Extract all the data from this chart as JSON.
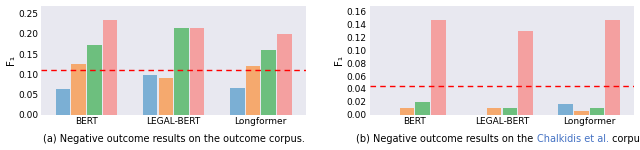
{
  "left_plot": {
    "title": "(a) Negative outcome results on the outcome corpus.",
    "ylabel": "F₁",
    "ylim": [
      0.0,
      0.27
    ],
    "yticks": [
      0.0,
      0.05,
      0.1,
      0.15,
      0.2,
      0.25
    ],
    "dashed_line": 0.11,
    "categories": [
      "BERT",
      "LEGAL-BERT",
      "Longformer"
    ],
    "bars": {
      "blue": [
        0.063,
        0.097,
        0.065
      ],
      "orange": [
        0.125,
        0.09,
        0.12
      ],
      "green": [
        0.173,
        0.215,
        0.16
      ],
      "red": [
        0.235,
        0.215,
        0.2
      ]
    },
    "bar_colors": [
      "#7bafd4",
      "#f5a96e",
      "#6dbf7e",
      "#f4a0a0"
    ]
  },
  "right_plot": {
    "title_plain1": "(b) Negative outcome results on the ",
    "title_link": "Chalkidis et al.",
    "title_end": " corpus.",
    "link_color": "#4472c4",
    "ylabel": "F₁",
    "ylim": [
      0.0,
      0.17
    ],
    "yticks": [
      0.0,
      0.02,
      0.04,
      0.06,
      0.08,
      0.1,
      0.12,
      0.14,
      0.16
    ],
    "dashed_line": 0.045,
    "categories": [
      "BERT",
      "LEGAL-BERT",
      "Longformer"
    ],
    "bars": {
      "blue": [
        0.0,
        0.0,
        0.016
      ],
      "orange": [
        0.01,
        0.01,
        0.005
      ],
      "green": [
        0.02,
        0.01,
        0.01
      ],
      "red": [
        0.147,
        0.13,
        0.148
      ]
    },
    "bar_colors": [
      "#7bafd4",
      "#f5a96e",
      "#6dbf7e",
      "#f4a0a0"
    ]
  },
  "background_color": "#e8e8f0",
  "fig_background": "#ffffff",
  "caption_fontsize": 7.0,
  "axis_fontsize": 6.5,
  "ylabel_fontsize": 7.5
}
